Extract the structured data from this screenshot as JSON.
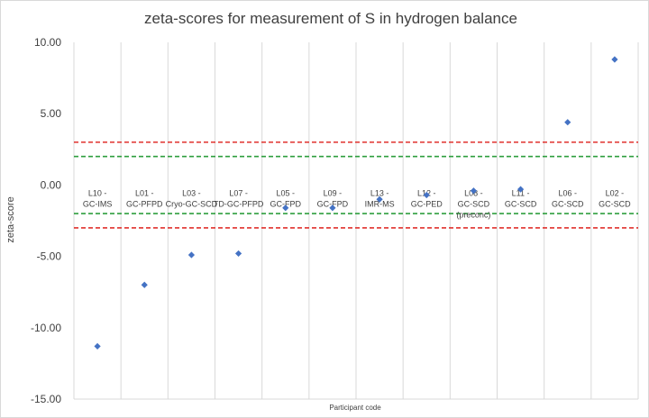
{
  "chart_data": {
    "type": "scatter",
    "title": "zeta-scores for measurement of S in hydrogen balance",
    "xlabel": "Participant code",
    "ylabel": "zeta-score",
    "ylim": [
      -15,
      10
    ],
    "yticks": [
      "10.00",
      "5.00",
      "0.00",
      "-5.00",
      "-10.00",
      "-15.00"
    ],
    "grid": "vertical",
    "marker_color": "#4472c4",
    "categories": [
      [
        "L10 -",
        "GC-IMS"
      ],
      [
        "L01 -",
        "GC-PFPD"
      ],
      [
        "L03 -",
        "Cryo-GC-SCD"
      ],
      [
        "L07 -",
        "TD-GC-PFPD"
      ],
      [
        "L05 -",
        "GC-FPD"
      ],
      [
        "L09 -",
        "GC-FPD"
      ],
      [
        "L13 -",
        "IMR-MS"
      ],
      [
        "L12 -",
        "GC-PED"
      ],
      [
        "L08 -",
        "GC-SCD",
        "(preconc)"
      ],
      [
        "L11 -",
        "GC-SCD"
      ],
      [
        "L06 -",
        "GC-SCD"
      ],
      [
        "L02 -",
        "GC-SCD"
      ]
    ],
    "values": [
      -11.3,
      -7.0,
      -4.9,
      -4.8,
      -1.6,
      -1.6,
      -1.0,
      -0.7,
      -0.4,
      -0.3,
      4.4,
      8.8
    ],
    "reference_lines": [
      {
        "value": 3,
        "color": "#e0312d"
      },
      {
        "value": -3,
        "color": "#e0312d"
      },
      {
        "value": 2,
        "color": "#2e9e3e"
      },
      {
        "value": -2,
        "color": "#2e9e3e"
      }
    ]
  }
}
